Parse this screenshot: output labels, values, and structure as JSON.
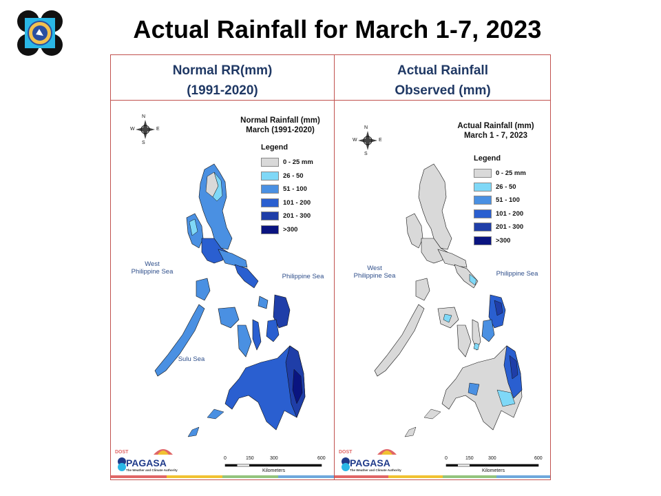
{
  "slide": {
    "title": "Actual Rainfall for March 1-7, 2023"
  },
  "headers": {
    "left_line1": "Normal RR(mm)",
    "left_line2": "(1991-2020)",
    "right_line1": "Actual Rainfall",
    "right_line2": "Observed  (mm)"
  },
  "maps": {
    "left": {
      "title_line1": "Normal Rainfall (mm)",
      "title_line2": "March (1991-2020)",
      "sea_west_line1": "West",
      "sea_west_line2": "Philippine Sea",
      "sea_east": "Philippine Sea",
      "sea_south": "Sulu Sea"
    },
    "right": {
      "title_line1": "Actual Rainfall (mm)",
      "title_line2": "March 1 - 7, 2023",
      "sea_west_line1": "West",
      "sea_west_line2": "Philippine Sea",
      "sea_east": "Philippine Sea"
    }
  },
  "legend": {
    "title": "Legend",
    "items": [
      {
        "label": "0 - 25 mm",
        "color": "#d9d9d9"
      },
      {
        "label": "26 - 50",
        "color": "#7fd8f7"
      },
      {
        "label": "51 - 100",
        "color": "#4a90e2"
      },
      {
        "label": "101 - 200",
        "color": "#2a5fd0"
      },
      {
        "label": "201 - 300",
        "color": "#1f3ea8"
      },
      {
        "label": ">300",
        "color": "#0a1480"
      }
    ]
  },
  "compass": {
    "n": "N",
    "s": "S",
    "e": "E",
    "w": "W"
  },
  "scale": {
    "ticks": [
      "0",
      "150",
      "300",
      "600"
    ],
    "unit": "Kilometers"
  },
  "brand": {
    "name": "PAGASA",
    "tag": "DOST",
    "tagline": "The Weather and Climate Authority"
  },
  "strip_colors": [
    "#e06666",
    "#f1c232",
    "#93c47d",
    "#6fa8dc"
  ]
}
